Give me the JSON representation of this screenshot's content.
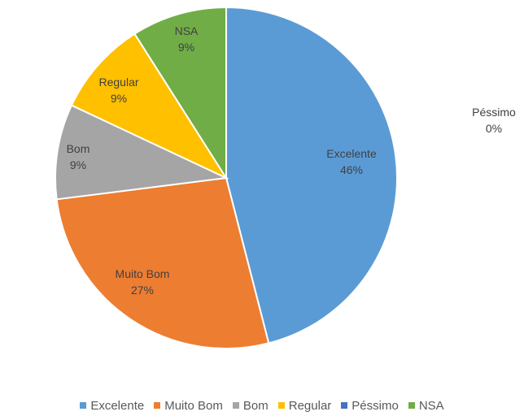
{
  "chart_data": {
    "type": "pie",
    "title": "",
    "slices": [
      {
        "label": "Excelente",
        "value": 46,
        "value_label": "46%",
        "color": "#5B9BD5"
      },
      {
        "label": "Muito Bom",
        "value": 27,
        "value_label": "27%",
        "color": "#ED7D31"
      },
      {
        "label": "Bom",
        "value": 9,
        "value_label": "9%",
        "color": "#A5A5A5"
      },
      {
        "label": "Regular",
        "value": 9,
        "value_label": "9%",
        "color": "#FFC000"
      },
      {
        "label": "Péssimo",
        "value": 0,
        "value_label": "0%",
        "color": "#4472C4"
      },
      {
        "label": "NSA",
        "value": 9,
        "value_label": "9%",
        "color": "#70AD47"
      }
    ],
    "legend": {
      "position": "bottom"
    }
  }
}
